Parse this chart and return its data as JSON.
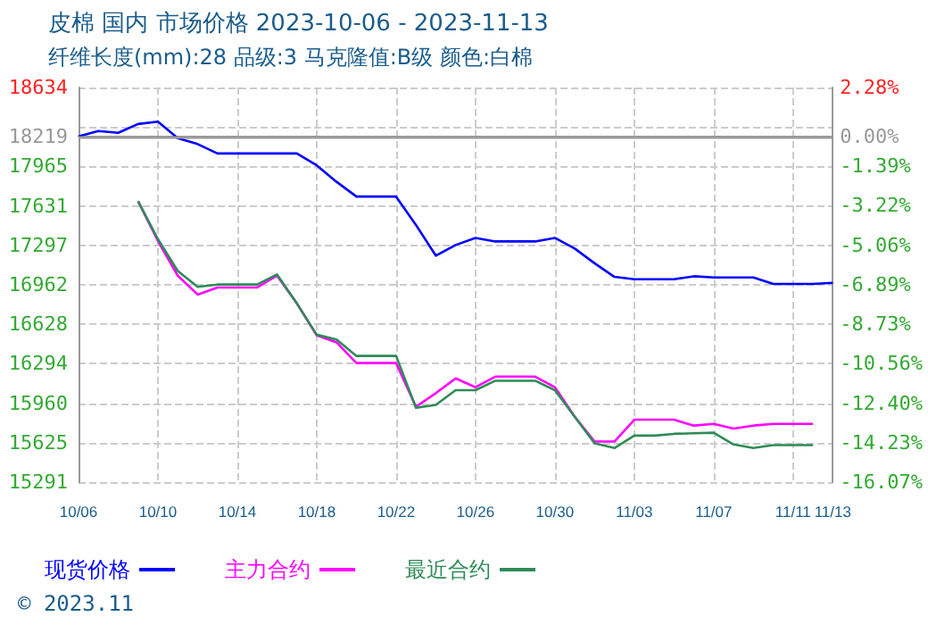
{
  "chart_data": {
    "type": "line",
    "title": "皮棉 国内 市场价格 2023-10-06 - 2023-11-13",
    "subtitle": "纤维长度(mm):28 品级:3 马克隆值:B级 颜色:白棉",
    "annotations": [
      "© 2023.11"
    ],
    "x": [
      "2023-10-06",
      "2023-10-07",
      "2023-10-08",
      "2023-10-09",
      "2023-10-10",
      "2023-10-11",
      "2023-10-12",
      "2023-10-13",
      "2023-10-14",
      "2023-10-15",
      "2023-10-16",
      "2023-10-17",
      "2023-10-18",
      "2023-10-19",
      "2023-10-20",
      "2023-10-21",
      "2023-10-22",
      "2023-10-23",
      "2023-10-24",
      "2023-10-25",
      "2023-10-26",
      "2023-10-27",
      "2023-10-28",
      "2023-10-29",
      "2023-10-30",
      "2023-10-31",
      "2023-11-01",
      "2023-11-02",
      "2023-11-03",
      "2023-11-04",
      "2023-11-05",
      "2023-11-06",
      "2023-11-07",
      "2023-11-08",
      "2023-11-09",
      "2023-11-10",
      "2023-11-11",
      "2023-11-12",
      "2023-11-13"
    ],
    "series": [
      {
        "name": "现货价格",
        "color": "#0000ff",
        "values": [
          18219,
          18265,
          18250,
          18325,
          18345,
          18205,
          18155,
          18075,
          18075,
          18075,
          18075,
          18075,
          17975,
          17835,
          17710,
          17710,
          17710,
          17470,
          17210,
          17300,
          17360,
          17330,
          17330,
          17330,
          17360,
          17270,
          17145,
          17030,
          17010,
          17010,
          17010,
          17035,
          17025,
          17025,
          17025,
          16970,
          16970,
          16970,
          16980
        ]
      },
      {
        "name": "主力合约",
        "color": "#ff00ff",
        "values": [
          null,
          null,
          null,
          17670,
          17335,
          17040,
          16880,
          16940,
          16940,
          16940,
          17040,
          16805,
          16535,
          16475,
          16300,
          16300,
          16300,
          15930,
          16045,
          16170,
          16095,
          16185,
          16185,
          16185,
          16095,
          15845,
          15635,
          15635,
          15820,
          15820,
          15820,
          15770,
          15785,
          15745,
          15770,
          15785,
          15785,
          15785,
          null
        ]
      },
      {
        "name": "最近合约",
        "color": "#2e8b57",
        "values": [
          null,
          null,
          null,
          17670,
          17350,
          17080,
          16945,
          16965,
          16965,
          16965,
          17050,
          16805,
          16540,
          16500,
          16360,
          16360,
          16360,
          15920,
          15945,
          16070,
          16070,
          16150,
          16150,
          16150,
          16070,
          15845,
          15620,
          15580,
          15685,
          15685,
          15700,
          15705,
          15710,
          15610,
          15580,
          15605,
          15605,
          15605,
          null
        ]
      }
    ],
    "xlim": [
      "2023-10-06",
      "2023-11-13"
    ],
    "xticks": [
      {
        "value": "2023-10-06",
        "label": "10/06"
      },
      {
        "value": "2023-10-10",
        "label": "10/10"
      },
      {
        "value": "2023-10-14",
        "label": "10/14"
      },
      {
        "value": "2023-10-18",
        "label": "10/18"
      },
      {
        "value": "2023-10-22",
        "label": "10/22"
      },
      {
        "value": "2023-10-26",
        "label": "10/26"
      },
      {
        "value": "2023-10-30",
        "label": "10/30"
      },
      {
        "value": "2023-11-03",
        "label": "11/03"
      },
      {
        "value": "2023-11-07",
        "label": "11/07"
      },
      {
        "value": "2023-11-11",
        "label": "11/11"
      },
      {
        "value": "2023-11-13",
        "label": "11/13"
      }
    ],
    "ylim": [
      15291,
      18634
    ],
    "yticks": [
      15291,
      15625,
      15960,
      16294,
      16628,
      16962,
      17297,
      17631,
      17965,
      18219,
      {
        "value": 18299,
        "label": null
      },
      18634
    ],
    "y2lim": [
      -16.07,
      2.28
    ],
    "y2ticks": [
      {
        "value": -16.07,
        "label": "-16.07%"
      },
      {
        "value": -14.23,
        "label": "-14.23%"
      },
      {
        "value": -12.4,
        "label": "-12.40%"
      },
      {
        "value": -10.56,
        "label": "-10.56%"
      },
      {
        "value": -8.73,
        "label": "-8.73%"
      },
      {
        "value": -6.89,
        "label": "-6.89%"
      },
      {
        "value": -5.06,
        "label": "-5.06%"
      },
      {
        "value": -3.22,
        "label": "-3.22%"
      },
      {
        "value": -1.39,
        "label": "-1.39%"
      },
      {
        "value": 0,
        "label": "0.00%"
      },
      {
        "value": 2.28,
        "label": "2.28%"
      }
    ],
    "ref_lines": [
      {
        "axis": "y",
        "value": 18219,
        "color": "#999999"
      }
    ],
    "grid": true,
    "legend": "bottom left",
    "marker": "none",
    "line_style": "solid"
  }
}
